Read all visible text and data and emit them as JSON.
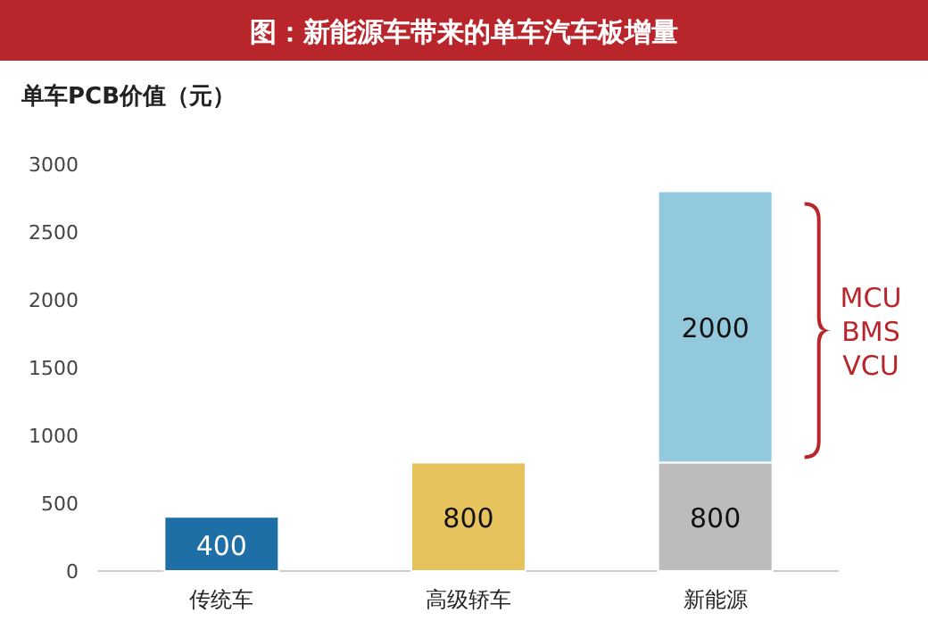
{
  "chart_data": {
    "type": "bar",
    "stacked": true,
    "title": "图：新能源车带来的单车汽车板增量",
    "ylabel": "单车PCB价值（元）",
    "categories": [
      "传统车",
      "高级轿车",
      "新能源"
    ],
    "series": [
      {
        "values": [
          400,
          800,
          800
        ],
        "colors": [
          "#1d6fa5",
          "#e6c35c",
          "#bcbcbc"
        ]
      },
      {
        "values": [
          null,
          null,
          2000
        ],
        "color": "#93c9dd"
      }
    ],
    "ylim": [
      0,
      3000
    ],
    "yticks": [
      0,
      500,
      1000,
      1500,
      2000,
      2500,
      3000
    ],
    "data_labels": true,
    "annotations": [
      "MCU\nBMS\nVCU"
    ]
  }
}
